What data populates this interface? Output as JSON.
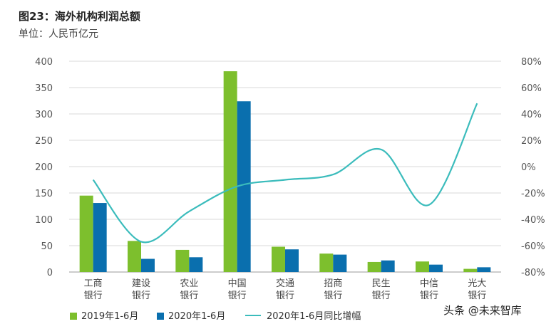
{
  "header": {
    "title": "图23：海外机构利润总额",
    "unit": "单位：人民币亿元"
  },
  "chart_data": {
    "type": "bar",
    "categories": [
      [
        "工商",
        "银行"
      ],
      [
        "建设",
        "银行"
      ],
      [
        "农业",
        "银行"
      ],
      [
        "中国",
        "银行"
      ],
      [
        "交通",
        "银行"
      ],
      [
        "招商",
        "银行"
      ],
      [
        "民生",
        "银行"
      ],
      [
        "中信",
        "银行"
      ],
      [
        "光大",
        "银行"
      ]
    ],
    "series": [
      {
        "name": "2019年1-6月",
        "kind": "bar",
        "axis": "left",
        "color": "#7dbf2d",
        "values": [
          145,
          59,
          42,
          381,
          48,
          35,
          19,
          20,
          6
        ]
      },
      {
        "name": "2020年1-6月",
        "kind": "bar",
        "axis": "left",
        "color": "#0a6fae",
        "values": [
          131,
          25,
          28,
          324,
          43,
          33,
          22,
          14,
          9
        ]
      },
      {
        "name": "2020年1-6月同比增幅",
        "kind": "line",
        "axis": "right",
        "color": "#3bbcbc",
        "values": [
          -10,
          -57,
          -34,
          -15,
          -10,
          -6,
          13,
          -29,
          48
        ]
      }
    ],
    "y_left": {
      "min": 0,
      "max": 400,
      "ticks": [
        0,
        50,
        100,
        150,
        200,
        250,
        300,
        350,
        400
      ]
    },
    "y_right": {
      "min": -80,
      "max": 80,
      "ticks": [
        -80,
        -60,
        -40,
        -20,
        0,
        20,
        40,
        60,
        80
      ],
      "tick_labels": [
        "-80%",
        "-60%",
        "-40%",
        "-20%",
        "0%",
        "20%",
        "40%",
        "60%",
        "80%"
      ]
    },
    "grid": true,
    "legend_position": "bottom"
  },
  "legend": {
    "items": [
      "2019年1-6月",
      "2020年1-6月",
      "2020年1-6月同比增幅"
    ]
  },
  "watermark": "头条 @未来智库"
}
